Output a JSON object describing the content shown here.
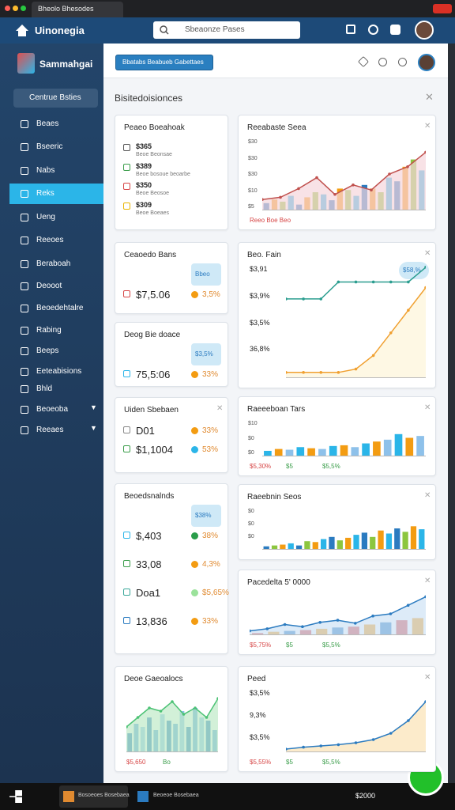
{
  "browser": {
    "tab": "Bheolo Bhesodes"
  },
  "header": {
    "logo": "Uinonegia",
    "search": "Sbeaonze Pases"
  },
  "sidebar": {
    "brand": "Sammahgai",
    "button": "Centrue Bsties",
    "items": [
      "Beaes",
      "Bseeric",
      "Nabs",
      "Reks",
      "Ueng",
      "Reeoes",
      "Beraboah",
      "Deooot",
      "Beoedehtalre",
      "Rabing",
      "Beeps",
      "Eeteabisions",
      "Bhld",
      "Beoeoba",
      "Reeaes"
    ]
  },
  "main": {
    "action": "Bbatabs Beabueb Gabettaes",
    "heading": "Bisitedoisionces"
  },
  "left_cards": [
    {
      "title": "Peaeo Boeahoak",
      "rows": [
        {
          "value": "$365",
          "sub": "Beoe Beonsae",
          "color": "#555555"
        },
        {
          "value": "$389",
          "sub": "Beoe bosoue beoarbe",
          "color": "#3a9d4a"
        },
        {
          "value": "$350",
          "sub": "Beoe Beosoe",
          "color": "#d64545"
        },
        {
          "value": "$309",
          "sub": "Beoe Boeaes",
          "color": "#e8b400"
        }
      ]
    },
    {
      "title": "Ceaoedo Bans",
      "badge": "Bbeo",
      "rows": [
        {
          "value": "$7,5.06",
          "pct": "3,5%",
          "color": "#d64545",
          "dot": "#f39c12"
        }
      ]
    },
    {
      "title": "Deog Bie doace",
      "badge": "$3,5%",
      "rows": [
        {
          "value": "75,5:06",
          "pct": "33%",
          "color": "#2bb5e8",
          "dot": "#f39c12"
        }
      ]
    },
    {
      "title": "Uiden Sbebaen",
      "rows": [
        {
          "value": "D01",
          "pct": "33%",
          "color": "#888888",
          "dot": "#f39c12"
        },
        {
          "value": "$1,1004",
          "pct": "53%",
          "color": "#3a9d4a",
          "dot": "#2bb5e8"
        }
      ]
    },
    {
      "title": "Beoedsnalnds",
      "badge": "$38%",
      "rows": [
        {
          "value": "$,403",
          "pct": "38%",
          "color": "#2bb5e8",
          "dot": "#2a9d4a"
        },
        {
          "value": "33,08",
          "pct": "4,3%",
          "color": "#3a9d4a",
          "dot": "#f39c12"
        },
        {
          "value": "Doa1",
          "pct": "$5,65%",
          "color": "#3aa79a",
          "dot": "#9be29b"
        },
        {
          "value": "13,836",
          "pct": "33%",
          "color": "#2b7bc0",
          "dot": "#f39c12"
        }
      ]
    },
    {
      "title": "Deoe Gaeoalocs",
      "footer": [
        "$5,650",
        "Bo"
      ],
      "chart": {
        "ymax": 100,
        "bars": [
          30,
          45,
          40,
          55,
          35,
          60,
          50,
          45,
          65,
          40,
          70,
          55,
          50,
          35
        ],
        "colors": [
          "#2b7bc0",
          "#5aa0dc",
          "#8ec1ea"
        ],
        "lines": [
          {
            "color": "#4cc275",
            "area": "#bfe9c8",
            "values": [
              40,
              55,
              70,
              65,
              80,
              60,
              70,
              55,
              85
            ]
          }
        ]
      }
    }
  ],
  "right_cards": [
    {
      "title": "Reeabaste Seea",
      "ticks": [
        "$30",
        "$30",
        "$30",
        "$10",
        "$5"
      ],
      "footer": [
        "Reeo Boe Beo"
      ],
      "chart": {
        "ymax": 100,
        "bars": [
          10,
          15,
          12,
          20,
          8,
          18,
          25,
          22,
          14,
          30,
          28,
          20,
          35,
          30,
          25,
          45,
          40,
          60,
          70,
          55
        ],
        "colors": [
          "#2b7bc0",
          "#f39c12",
          "#8cc63f",
          "#2bb5e8"
        ],
        "lines": [
          {
            "color": "#c0504d",
            "area": "#f5d6dc",
            "values": [
              15,
              18,
              30,
              45,
              22,
              35,
              28,
              50,
              60,
              80
            ]
          }
        ]
      }
    },
    {
      "title": "Beo. Fain",
      "badge": "$58,%",
      "rows": [
        {
          "value": "$3,91"
        },
        {
          "value": "$3,9%"
        },
        {
          "value": "$3,5%"
        },
        {
          "value": "36,8%"
        }
      ],
      "chart": {
        "ymax": 100,
        "bars": [],
        "colors": [],
        "lines": [
          {
            "color": "#2a9d8f",
            "values": [
              70,
              70,
              70,
              85,
              85,
              85,
              85,
              85,
              98
            ]
          },
          {
            "color": "#f0a030",
            "area": "#fdf5d8",
            "values": [
              5,
              5,
              5,
              5,
              8,
              20,
              40,
              60,
              80
            ]
          }
        ]
      }
    },
    {
      "title": "Raeeeboan Tars",
      "ticks": [
        "$10",
        "$0",
        "$0"
      ],
      "footer": [
        "$5,30%",
        "$5",
        "$5,5%"
      ],
      "chart": {
        "ymax": 100,
        "bars": [
          15,
          20,
          18,
          25,
          22,
          20,
          28,
          30,
          25,
          35,
          40,
          45,
          60,
          50,
          55
        ],
        "colors": [
          "#2bb5e8",
          "#f39c12",
          "#8ec1ea"
        ],
        "lines": []
      }
    },
    {
      "title": "Raeebnin Seos",
      "ticks": [
        "$0",
        "$0",
        "$0"
      ],
      "footer": [],
      "chart": {
        "ymax": 100,
        "bars": [
          8,
          10,
          12,
          15,
          10,
          20,
          18,
          25,
          30,
          22,
          28,
          35,
          40,
          30,
          45,
          38,
          50,
          42,
          55,
          48
        ],
        "colors": [
          "#2b7bc0",
          "#8cc63f",
          "#f39c12",
          "#2bb5e8"
        ],
        "lines": []
      }
    },
    {
      "title": "Pacedelta 5' 0000",
      "footer": [
        "$5,75%",
        "$5",
        "$5,5%"
      ],
      "chart": {
        "ymax": 100,
        "bars": [
          5,
          8,
          10,
          12,
          15,
          18,
          20,
          25,
          30,
          35,
          40
        ],
        "colors": [
          "#d64545",
          "#f39c12",
          "#2b7bc0"
        ],
        "lines": [
          {
            "color": "#2b7bc0",
            "area": "#cfe2f5",
            "values": [
              10,
              15,
              25,
              20,
              30,
              35,
              28,
              45,
              50,
              70,
              90
            ]
          }
        ]
      }
    },
    {
      "title": "Peed",
      "rows": [
        {
          "value": "$3,5%"
        },
        {
          "value": "9,3%"
        },
        {
          "value": "$3,5%"
        }
      ],
      "footer": [
        "$5,55%",
        "$5",
        "$5,5%"
      ],
      "chart": {
        "ymax": 100,
        "bars": [],
        "colors": [],
        "lines": [
          {
            "color": "#2b7bc0",
            "area": "#fbe3b5",
            "values": [
              5,
              8,
              10,
              12,
              15,
              20,
              30,
              50,
              80
            ]
          }
        ]
      }
    }
  ],
  "taskbar": {
    "items": [
      "Bosoeoes Bosebaea",
      "Beoeoe Bosebaea"
    ],
    "clock": "$2000"
  }
}
